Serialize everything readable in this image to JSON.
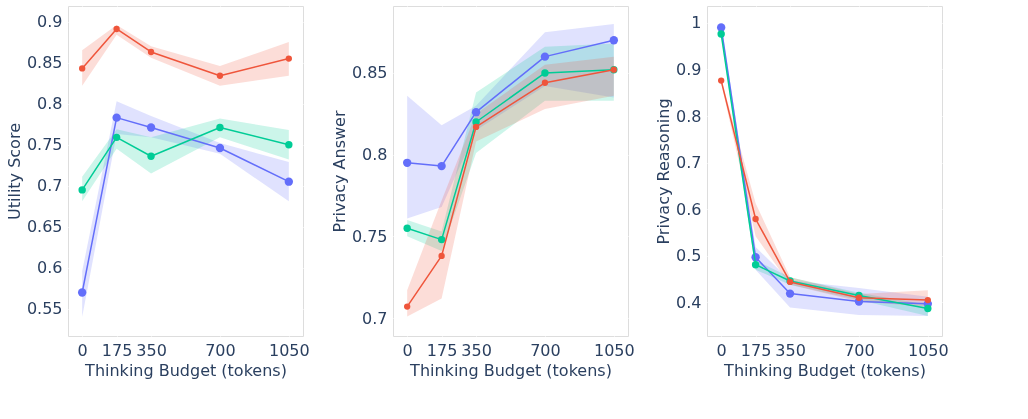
{
  "chart_data": [
    {
      "type": "line",
      "xlabel": "Thinking Budget (tokens)",
      "ylabel": "Utility Score",
      "x": [
        0,
        175,
        350,
        700,
        1050
      ],
      "xlim": [
        -72,
        1122
      ],
      "xticks": [
        0,
        175,
        350,
        700,
        1050
      ],
      "ylim": [
        0.517,
        0.919
      ],
      "yticks": [
        0.55,
        0.6,
        0.65,
        0.7,
        0.75,
        0.8,
        0.85,
        0.9
      ],
      "grid": true,
      "marker": "circle",
      "line_style": "solid",
      "series": [
        {
          "color": "#636efa",
          "values": [
            0.57,
            0.783,
            0.771,
            0.746,
            0.705
          ],
          "lower": [
            0.54,
            0.763,
            0.759,
            0.739,
            0.681
          ],
          "upper": [
            0.596,
            0.803,
            0.785,
            0.752,
            0.729
          ]
        },
        {
          "color": "#00cc96",
          "values": [
            0.695,
            0.759,
            0.736,
            0.771,
            0.75
          ],
          "lower": [
            0.681,
            0.745,
            0.715,
            0.759,
            0.732
          ],
          "upper": [
            0.711,
            0.769,
            0.759,
            0.782,
            0.768
          ]
        },
        {
          "color": "#ef553b",
          "values": [
            0.843,
            0.891,
            0.863,
            0.834,
            0.855
          ],
          "lower": [
            0.822,
            0.884,
            0.856,
            0.822,
            0.834
          ],
          "upper": [
            0.865,
            0.896,
            0.87,
            0.846,
            0.875
          ]
        }
      ]
    },
    {
      "type": "line",
      "xlabel": "Thinking Budget (tokens)",
      "ylabel": "Privacy Answer",
      "x": [
        0,
        175,
        350,
        700,
        1050
      ],
      "xlim": [
        -72,
        1122
      ],
      "xticks": [
        0,
        175,
        350,
        700,
        1050
      ],
      "ylim": [
        0.689,
        0.891
      ],
      "yticks": [
        0.7,
        0.75,
        0.8,
        0.85
      ],
      "grid": true,
      "marker": "circle",
      "line_style": "solid",
      "series": [
        {
          "color": "#636efa",
          "values": [
            0.795,
            0.793,
            0.826,
            0.86,
            0.87
          ],
          "lower": [
            0.761,
            0.768,
            0.815,
            0.842,
            0.835
          ],
          "upper": [
            0.836,
            0.818,
            0.83,
            0.875,
            0.88
          ]
        },
        {
          "color": "#00cc96",
          "values": [
            0.755,
            0.748,
            0.82,
            0.85,
            0.852
          ],
          "lower": [
            0.75,
            0.741,
            0.801,
            0.833,
            0.833
          ],
          "upper": [
            0.76,
            0.753,
            0.838,
            0.866,
            0.868
          ]
        },
        {
          "color": "#ef553b",
          "values": [
            0.707,
            0.738,
            0.817,
            0.844,
            0.852
          ],
          "lower": [
            0.701,
            0.712,
            0.808,
            0.828,
            0.836
          ],
          "upper": [
            0.717,
            0.772,
            0.825,
            0.855,
            0.86
          ]
        }
      ]
    },
    {
      "type": "line",
      "xlabel": "Thinking Budget (tokens)",
      "ylabel": "Privacy Reasoning",
      "x": [
        0,
        175,
        350,
        700,
        1050
      ],
      "xlim": [
        -72,
        1122
      ],
      "xticks": [
        0,
        175,
        350,
        700,
        1050
      ],
      "ylim": [
        0.328,
        1.036
      ],
      "yticks": [
        0.4,
        0.5,
        0.6,
        0.7,
        0.8,
        0.9,
        1
      ],
      "grid": true,
      "marker": "circle",
      "line_style": "solid",
      "series": [
        {
          "color": "#636efa",
          "values": [
            0.99,
            0.497,
            0.419,
            0.402,
            0.397
          ],
          "lower": [
            0.985,
            0.47,
            0.389,
            0.373,
            0.371
          ],
          "upper": [
            0.995,
            0.519,
            0.447,
            0.431,
            0.412
          ]
        },
        {
          "color": "#00cc96",
          "values": [
            0.976,
            0.481,
            0.446,
            0.415,
            0.387
          ],
          "lower": [
            0.97,
            0.47,
            0.438,
            0.405,
            0.371
          ],
          "upper": [
            0.98,
            0.49,
            0.454,
            0.421,
            0.395
          ]
        },
        {
          "color": "#ef553b",
          "values": [
            0.876,
            0.579,
            0.444,
            0.41,
            0.405
          ],
          "lower": [
            0.87,
            0.542,
            0.438,
            0.402,
            0.391
          ],
          "upper": [
            0.88,
            0.613,
            0.454,
            0.418,
            0.426
          ]
        }
      ]
    }
  ]
}
